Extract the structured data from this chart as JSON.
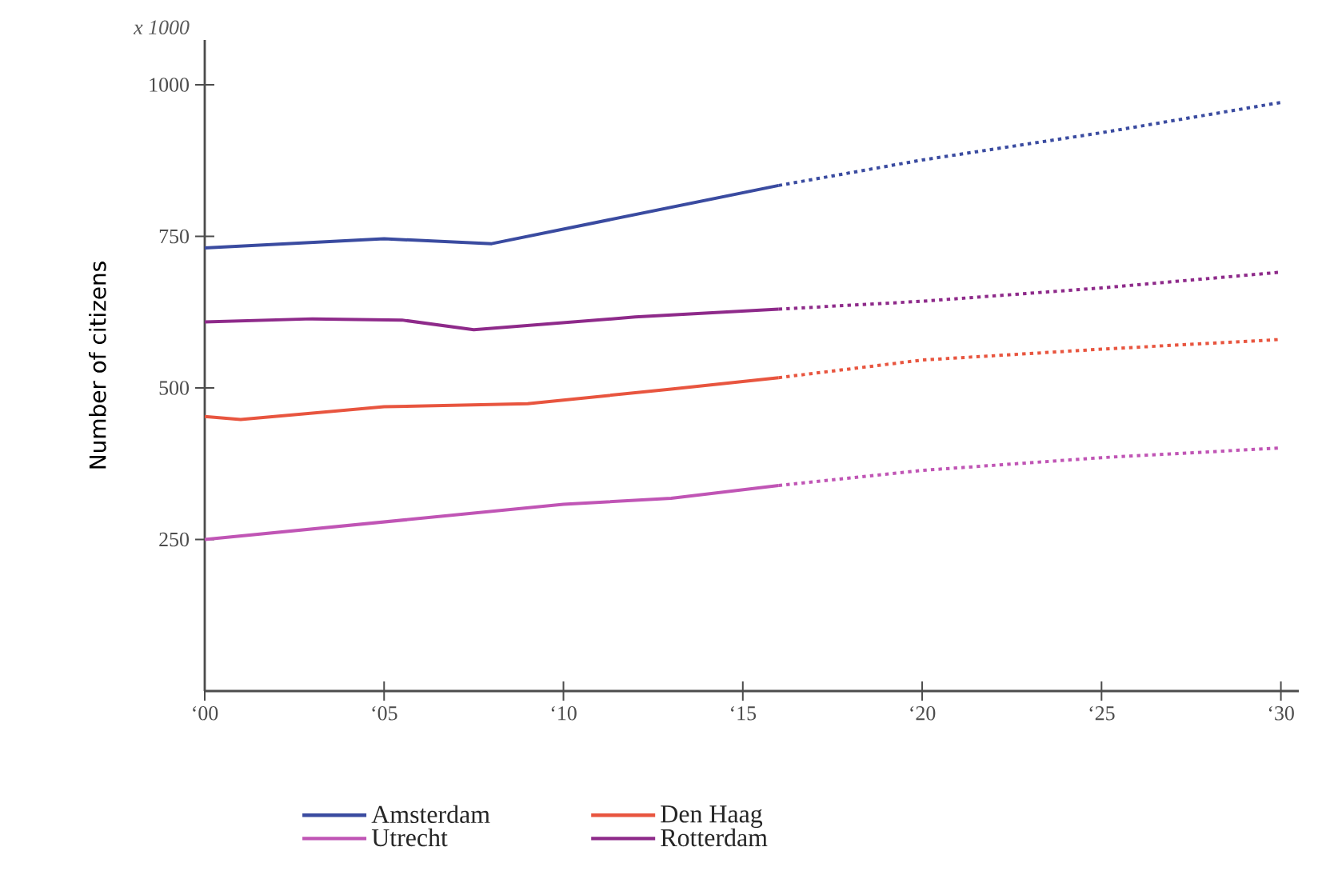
{
  "chart_data": {
    "type": "line",
    "ylabel": "Number of citizens",
    "annotations": [
      "x 1000"
    ],
    "xlim": [
      0,
      30.5
    ],
    "ylim": [
      0,
      1074
    ],
    "xticks": [
      {
        "value": 0,
        "label": "‘00"
      },
      {
        "value": 5,
        "label": "‘05"
      },
      {
        "value": 10,
        "label": "‘10"
      },
      {
        "value": 15,
        "label": "‘15"
      },
      {
        "value": 20,
        "label": "‘20"
      },
      {
        "value": 25,
        "label": "‘25"
      },
      {
        "value": 30,
        "label": "‘30"
      }
    ],
    "yticks": [
      250,
      500,
      750,
      1000
    ],
    "grid": false,
    "legend": "bottom",
    "marker": "none",
    "series": [
      {
        "name": "Amsterdam",
        "color": "#3a4ba0",
        "line_style": "solid",
        "x": [
          0,
          5,
          8,
          16
        ],
        "values": [
          731,
          746,
          738,
          834
        ]
      },
      {
        "name": "Den Haag",
        "color": "#e8553f",
        "line_style": "solid",
        "x": [
          0,
          1,
          5,
          9,
          13,
          16
        ],
        "values": [
          453,
          448,
          469,
          474,
          498,
          517
        ]
      },
      {
        "name": "Utrecht",
        "color": "#c055b5",
        "line_style": "solid",
        "x": [
          0,
          5,
          10,
          13,
          16
        ],
        "values": [
          250,
          279,
          308,
          318,
          339
        ]
      },
      {
        "name": "Rotterdam",
        "color": "#8e2a8a",
        "line_style": "solid",
        "x": [
          0,
          3,
          5.5,
          7.5,
          12,
          16
        ],
        "values": [
          609,
          614,
          612,
          596,
          617,
          630
        ]
      },
      {
        "color": "#3a4ba0",
        "line_style": "dotted",
        "x": [
          16,
          20,
          25,
          30
        ],
        "values": [
          834,
          876,
          921,
          971
        ]
      },
      {
        "color": "#e8553f",
        "line_style": "dotted",
        "x": [
          16,
          20,
          25,
          30
        ],
        "values": [
          517,
          546,
          564,
          580
        ]
      },
      {
        "color": "#c055b5",
        "line_style": "dotted",
        "x": [
          16,
          20,
          25,
          30
        ],
        "values": [
          339,
          364,
          385,
          401
        ]
      },
      {
        "color": "#8e2a8a",
        "line_style": "dotted",
        "x": [
          16,
          20,
          25,
          30
        ],
        "values": [
          630,
          643,
          665,
          691
        ]
      }
    ]
  }
}
